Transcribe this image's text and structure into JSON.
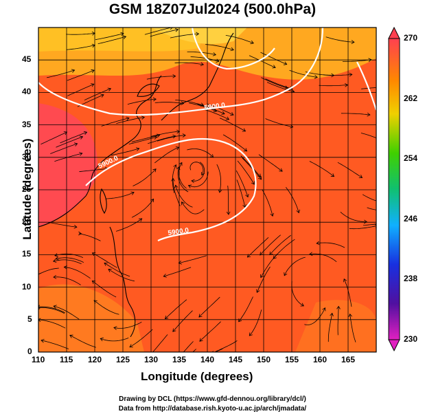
{
  "title": "GSM 18Z07Jul2024 (500.0hPa)",
  "xlabel": "Longitude (degrees)",
  "ylabel": "Latitude  (degrees)",
  "credits": [
    "Drawing by DCL (https://www.gfd-dennou.org/library/dcl/)",
    "Data from http://database.rish.kyoto-u.ac.jp/arch/jmadata/"
  ],
  "map_data": {
    "type": "map",
    "lon_range": [
      110,
      170
    ],
    "lat_range": [
      0,
      50
    ],
    "x_ticks": [
      "110",
      "115",
      "120",
      "125",
      "130",
      "135",
      "140",
      "145",
      "150",
      "155",
      "160",
      "165"
    ],
    "y_ticks": [
      "0",
      "5",
      "10",
      "15",
      "20",
      "25",
      "30",
      "35",
      "40",
      "45"
    ],
    "contour_labels": [
      "5900.0",
      "5900.0",
      "5900.0"
    ],
    "colorbar": {
      "ticks": [
        "230",
        "238",
        "246",
        "254",
        "262",
        "270"
      ],
      "colors": [
        "#e020c0",
        "#5010a0",
        "#2040ff",
        "#00c8ff",
        "#20d040",
        "#b0e000",
        "#ffc000",
        "#ff8000",
        "#ff3000",
        "#ff4060"
      ]
    },
    "colors": {
      "field_warm": "#ff5a28",
      "field_hot": "#ff4040",
      "field_yellow": "#ffb020",
      "coast": "#000000",
      "streamline": "#000000",
      "contour": "#ffffff"
    }
  }
}
